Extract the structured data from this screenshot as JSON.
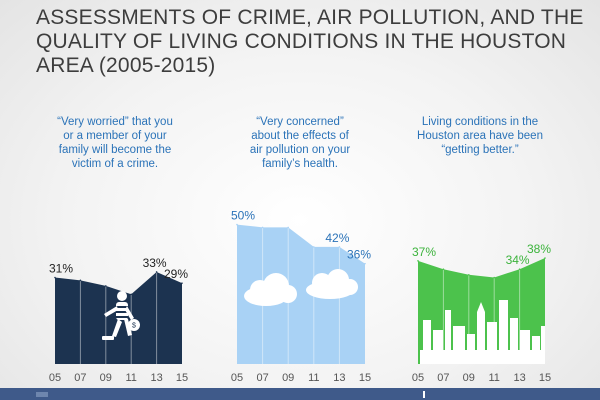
{
  "title_lines": [
    "ASSESSMENTS OF CRIME, AIR POLLUTION, AND THE",
    "QUALITY OF LIVING CONDITIONS IN THE HOUSTON",
    "AREA (2005-2015)"
  ],
  "captions": [
    [
      "“Very worried” that you",
      "or a member of your",
      "family will become the",
      "victim of a crime."
    ],
    [
      "“Very concerned”",
      "about the effects of",
      "air pollution on your",
      "family’s health."
    ],
    [
      "Living conditions in the",
      "Houston area have been",
      "“getting better.”"
    ]
  ],
  "colors": {
    "crime": "#1c3350",
    "pollution": "#a9d2f5",
    "living": "#4cc24c",
    "crime_label": "#222222",
    "pollution_label": "#2b73b8",
    "living_label": "#3cb33c",
    "caption_crime": "#2b73b8",
    "caption_pollution": "#2b73b8",
    "caption_living": "#2b73b8",
    "axis_label": "#555555"
  },
  "icons": [
    "burglar-icon",
    "cloud-icon",
    "city-skyline-icon"
  ],
  "chart_data": [
    {
      "type": "area",
      "title": "",
      "x": [
        "05",
        "07",
        "09",
        "11",
        "13",
        "15"
      ],
      "values": [
        31,
        30,
        28,
        25,
        33,
        29
      ],
      "data_labels": [
        {
          "index": 0,
          "text": "31%"
        },
        {
          "index": 4,
          "text": "33%"
        },
        {
          "index": 5,
          "text": "29%"
        }
      ],
      "ylim": [
        0,
        52
      ],
      "grid": true
    },
    {
      "type": "area",
      "title": "",
      "x": [
        "05",
        "07",
        "09",
        "11",
        "13",
        "15"
      ],
      "values": [
        50,
        49,
        49,
        42,
        42,
        36
      ],
      "data_labels": [
        {
          "index": 0,
          "text": "50%"
        },
        {
          "index": 4,
          "text": "42%"
        },
        {
          "index": 5,
          "text": "36%"
        }
      ],
      "ylim": [
        0,
        52
      ],
      "grid": true
    },
    {
      "type": "area",
      "title": "",
      "x": [
        "05",
        "07",
        "09",
        "11",
        "13",
        "15"
      ],
      "values": [
        37,
        34,
        32,
        31,
        34,
        38
      ],
      "data_labels": [
        {
          "index": 0,
          "text": "37%"
        },
        {
          "index": 4,
          "text": "34%"
        },
        {
          "index": 5,
          "text": "38%"
        }
      ],
      "ylim": [
        0,
        52
      ],
      "grid": true
    }
  ]
}
